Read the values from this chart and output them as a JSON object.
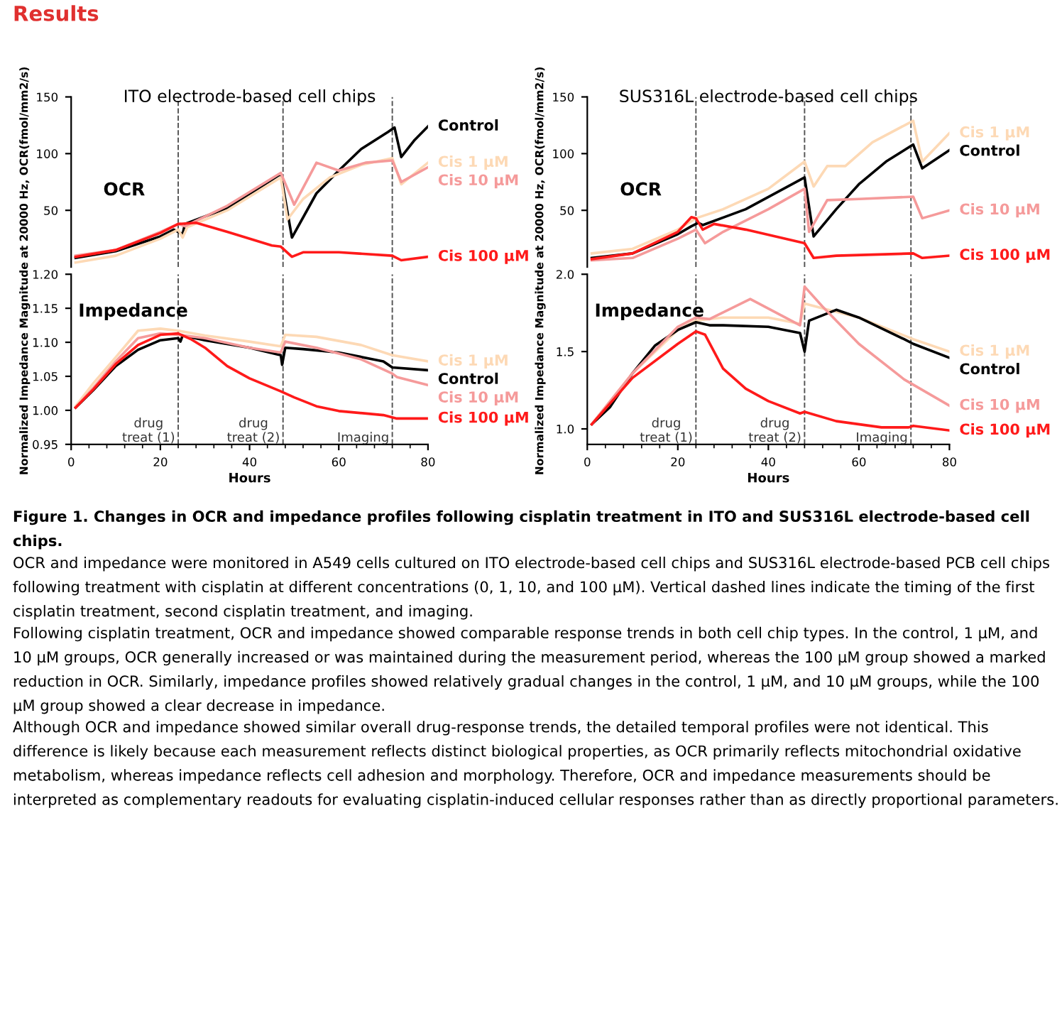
{
  "chart_data": [
    {
      "type": "line",
      "title": "ITO electrode-based cell chips",
      "annotations": [
        "OCR"
      ],
      "xlim": [
        0,
        80
      ],
      "xticks": [
        0,
        20,
        40,
        60,
        80
      ],
      "ylim": [
        0,
        150
      ],
      "yticks": [
        50,
        100,
        150
      ],
      "tick_labels": "y",
      "line_style": "solid",
      "ref_lines": [
        {
          "axis": "x",
          "value": 24,
          "line_style": "dashed",
          "color": "#555555"
        },
        {
          "axis": "x",
          "value": 47.5,
          "line_style": "dashed",
          "color": "#555555"
        },
        {
          "axis": "x",
          "value": 72,
          "line_style": "dashed",
          "color": "#555555"
        }
      ],
      "series": [
        {
          "name": "Control",
          "color": "#000000",
          "x": [
            1,
            10,
            20,
            23,
            24,
            25,
            25.5,
            35,
            47,
            49.5,
            55,
            60,
            65,
            71,
            72.5,
            74,
            77,
            80
          ],
          "values": [
            8,
            14,
            27,
            33,
            31,
            29,
            38,
            52,
            82,
            26,
            65,
            85,
            104,
            119,
            123,
            97,
            112,
            124
          ]
        },
        {
          "name": "Cis 1 µM",
          "color": "#fdd9b5",
          "x": [
            1,
            10,
            20,
            24,
            25,
            26,
            35,
            47,
            48.5,
            52,
            58,
            65,
            72,
            74,
            80
          ],
          "values": [
            4,
            10,
            25,
            33,
            26,
            35,
            50,
            79,
            42,
            60,
            79,
            90,
            96,
            73,
            92
          ]
        },
        {
          "name": "Cis 10 µM",
          "color": "#f59a9a",
          "x": [
            1,
            10,
            20,
            24,
            25.5,
            35,
            47,
            50,
            55,
            60,
            66,
            72,
            74,
            80
          ],
          "values": [
            10,
            15,
            31,
            38,
            36,
            54,
            83,
            55,
            92,
            85,
            92,
            94,
            75,
            88
          ]
        },
        {
          "name": "Cis 100 µM",
          "color": "#ff1a1a",
          "x": [
            1,
            10,
            20,
            24,
            28,
            35,
            45,
            47,
            49.5,
            52,
            60,
            72,
            74,
            80
          ],
          "values": [
            9,
            15,
            30,
            38,
            39,
            31,
            19,
            18,
            9,
            13,
            13,
            10,
            6,
            9
          ]
        }
      ]
    },
    {
      "type": "line",
      "ylabel": "Normalized Impedance Magnitude at 20000 Hz, OCR(fmol/mm2/s)",
      "xlabel": "Hours",
      "annotations": [
        "Impedance"
      ],
      "xlim": [
        0,
        80
      ],
      "xticks": [
        0,
        20,
        40,
        60,
        80
      ],
      "ylim": [
        0.95,
        1.2
      ],
      "yticks": [
        {
          "value": 0.95,
          "label": "0.95"
        },
        {
          "value": 1.0,
          "label": "1.00"
        },
        {
          "value": 1.05,
          "label": "1.05"
        },
        {
          "value": 1.1,
          "label": "1.10"
        },
        {
          "value": 1.15,
          "label": "1.15"
        },
        {
          "value": 1.2,
          "label": "1.20"
        }
      ],
      "line_style": "solid",
      "ref_lines": [
        {
          "axis": "x",
          "value": 24,
          "label": "drug\ntreat (1)",
          "line_style": "dashed",
          "color": "#555555"
        },
        {
          "axis": "x",
          "value": 47.5,
          "label": "drug\ntreat (2)",
          "line_style": "dashed",
          "color": "#555555"
        },
        {
          "axis": "x",
          "value": 72,
          "label": "Imaging",
          "line_style": "dashed",
          "color": "#555555"
        }
      ],
      "series": [
        {
          "name": "Control",
          "color": "#000000",
          "x": [
            1,
            5,
            10,
            15,
            20,
            24,
            24.5,
            25,
            30,
            40,
            47,
            47.3,
            48,
            52,
            60,
            70,
            72,
            80
          ],
          "values": [
            1.004,
            1.03,
            1.065,
            1.089,
            1.103,
            1.106,
            1.101,
            1.11,
            1.103,
            1.092,
            1.081,
            1.067,
            1.092,
            1.09,
            1.085,
            1.072,
            1.063,
            1.059
          ]
        },
        {
          "name": "Cis 1 µM",
          "color": "#fdd9b5",
          "x": [
            1,
            5,
            10,
            15,
            20,
            24,
            30,
            40,
            47,
            48,
            55,
            65,
            72,
            80
          ],
          "values": [
            1.006,
            1.04,
            1.078,
            1.117,
            1.12,
            1.117,
            1.11,
            1.101,
            1.094,
            1.111,
            1.108,
            1.096,
            1.081,
            1.072
          ]
        },
        {
          "name": "Cis 10 µM",
          "color": "#f59a9a",
          "x": [
            1,
            5,
            10,
            15,
            20,
            24,
            30,
            40,
            47,
            48,
            55,
            65,
            72,
            73,
            80
          ],
          "values": [
            1.004,
            1.033,
            1.072,
            1.106,
            1.113,
            1.111,
            1.106,
            1.092,
            1.085,
            1.101,
            1.092,
            1.075,
            1.054,
            1.049,
            1.037
          ]
        },
        {
          "name": "Cis 100 µM",
          "color": "#ff1a1a",
          "x": [
            1,
            5,
            10,
            15,
            20,
            24,
            27,
            30,
            35,
            40,
            47,
            50,
            55,
            60,
            70,
            73,
            80
          ],
          "values": [
            1.004,
            1.031,
            1.068,
            1.096,
            1.111,
            1.113,
            1.104,
            1.092,
            1.065,
            1.047,
            1.028,
            1.019,
            1.006,
            0.999,
            0.993,
            0.988,
            0.988
          ]
        }
      ]
    },
    {
      "type": "line",
      "title": "SUS316L electrode-based cell chips",
      "annotations": [
        "OCR"
      ],
      "xlim": [
        0,
        80
      ],
      "xticks": [
        0,
        20,
        40,
        60,
        80
      ],
      "ylim": [
        0,
        150
      ],
      "yticks": [
        50,
        100,
        150
      ],
      "tick_labels": "y",
      "line_style": "solid",
      "ref_lines": [
        {
          "axis": "x",
          "value": 24,
          "line_style": "dashed",
          "color": "#555555"
        },
        {
          "axis": "x",
          "value": 48,
          "line_style": "dashed",
          "color": "#555555"
        },
        {
          "axis": "x",
          "value": 71.5,
          "line_style": "dashed",
          "color": "#555555"
        }
      ],
      "series": [
        {
          "name": "Cis 1 µM",
          "color": "#fdd9b5",
          "x": [
            1,
            10,
            20,
            24,
            30,
            40,
            48,
            50,
            53,
            57,
            63,
            72,
            74,
            80
          ],
          "values": [
            12,
            16,
            33,
            43,
            51,
            69,
            93,
            71,
            89,
            89,
            110,
            129,
            93,
            118
          ]
        },
        {
          "name": "Control",
          "color": "#000000",
          "x": [
            1,
            10,
            20,
            23,
            24.5,
            25.5,
            35,
            48,
            50,
            55,
            60,
            66,
            72,
            74,
            77,
            80
          ],
          "values": [
            8,
            12,
            29,
            36,
            39,
            37,
            51,
            79,
            27,
            51,
            73,
            93,
            108,
            87,
            95,
            103
          ]
        },
        {
          "name": "Cis 10 µM",
          "color": "#f59a9a",
          "x": [
            1,
            10,
            20,
            24,
            26,
            30,
            40,
            48,
            49,
            53,
            60,
            72,
            74,
            80
          ],
          "values": [
            6,
            8,
            25,
            33,
            21,
            31,
            51,
            69,
            31,
            59,
            60,
            62,
            43,
            50
          ]
        },
        {
          "name": "Cis 100 µM",
          "color": "#ff1a1a",
          "x": [
            1,
            10,
            20,
            23,
            24,
            25.5,
            28,
            35,
            48,
            50,
            55,
            72,
            74,
            80
          ],
          "values": [
            7,
            12,
            31,
            44,
            43,
            33,
            38,
            33,
            21,
            8,
            10,
            12,
            8,
            10
          ]
        }
      ]
    },
    {
      "type": "line",
      "ylabel": "Normalized Impedance Magnitude at 20000 Hz, OCR(fmol/mm2/s)",
      "xlabel": "Hours",
      "annotations": [
        "Impedance"
      ],
      "xlim": [
        0,
        80
      ],
      "xticks": [
        0,
        20,
        40,
        60,
        80
      ],
      "ylim": [
        0.9,
        2.0
      ],
      "yticks": [
        {
          "value": 1.0,
          "label": "1.0"
        },
        {
          "value": 1.5,
          "label": "1.5"
        },
        {
          "value": 2.0,
          "label": "2.0"
        }
      ],
      "line_style": "solid",
      "ref_lines": [
        {
          "axis": "x",
          "value": 24,
          "label": "drug\ntreat (1)",
          "line_style": "dashed",
          "color": "#555555"
        },
        {
          "axis": "x",
          "value": 48,
          "label": "drug\ntreat (2)",
          "line_style": "dashed",
          "color": "#555555"
        },
        {
          "axis": "x",
          "value": 71.5,
          "label": "Imaging",
          "line_style": "dashed",
          "color": "#555555"
        }
      ],
      "series": [
        {
          "name": "Cis 1 µM",
          "color": "#fdd9b5",
          "x": [
            1,
            10,
            20,
            24,
            30,
            40,
            47,
            48,
            52,
            60,
            72,
            80
          ],
          "values": [
            1.03,
            1.36,
            1.64,
            1.7,
            1.72,
            1.72,
            1.68,
            1.81,
            1.78,
            1.72,
            1.58,
            1.5
          ]
        },
        {
          "name": "Control",
          "color": "#000000",
          "x": [
            1,
            5,
            10,
            15,
            20,
            24,
            27,
            30,
            40,
            47,
            48,
            49,
            55,
            60,
            70,
            72,
            80
          ],
          "values": [
            1.03,
            1.14,
            1.36,
            1.54,
            1.64,
            1.69,
            1.67,
            1.67,
            1.66,
            1.62,
            1.5,
            1.7,
            1.77,
            1.72,
            1.58,
            1.55,
            1.46
          ]
        },
        {
          "name": "Cis 10 µM",
          "color": "#f59a9a",
          "x": [
            1,
            10,
            20,
            24,
            27,
            36,
            47,
            48,
            52,
            60,
            70,
            80
          ],
          "values": [
            1.03,
            1.36,
            1.66,
            1.72,
            1.71,
            1.84,
            1.67,
            1.92,
            1.79,
            1.55,
            1.32,
            1.15
          ]
        },
        {
          "name": "Cis 100 µM",
          "color": "#ff1a1a",
          "x": [
            1,
            10,
            20,
            24,
            26,
            30,
            35,
            40,
            47,
            48,
            55,
            65,
            71,
            72,
            80
          ],
          "values": [
            1.03,
            1.33,
            1.55,
            1.63,
            1.61,
            1.39,
            1.26,
            1.18,
            1.1,
            1.11,
            1.05,
            1.01,
            1.01,
            1.02,
            0.99
          ]
        }
      ]
    },
    {
      "type": "other",
      "annotations": [
        "Results",
        "Figure 1. Changes in OCR and impedance profiles following cisplatin treatment in ITO and SUS316L electrode-based cell chips.",
        "OCR and impedance were monitored in A549 cells cultured on ITO electrode-based cell chips and SUS316L electrode-based PCB cell chips following treatment with cisplatin at different concentrations (0, 1, 10, and 100 µM). Vertical dashed lines indicate the timing of the first cisplatin treatment, second cisplatin treatment, and imaging.",
        "Following cisplatin treatment, OCR and impedance showed comparable response trends in both cell chip types. In the control, 1 µM, and 10 µM groups, OCR generally increased or was maintained during the measurement period, whereas the 100 µM group showed a marked reduction in OCR. Similarly, impedance profiles showed relatively gradual changes in the control, 1 µM, and 10 µM groups, while the 100 µM group showed a clear decrease in impedance.",
        "Although OCR and impedance showed similar overall drug-response trends, the detailed temporal profiles were not identical. This difference is likely because each measurement reflects distinct biological properties, as OCR primarily reflects mitochondrial oxidative metabolism, whereas impedance reflects cell adhesion and morphology. Therefore, OCR and impedance measurements should be interpreted as complementary readouts for evaluating cisplatin-induced cellular responses rather than as directly proportional parameters."
      ]
    }
  ]
}
